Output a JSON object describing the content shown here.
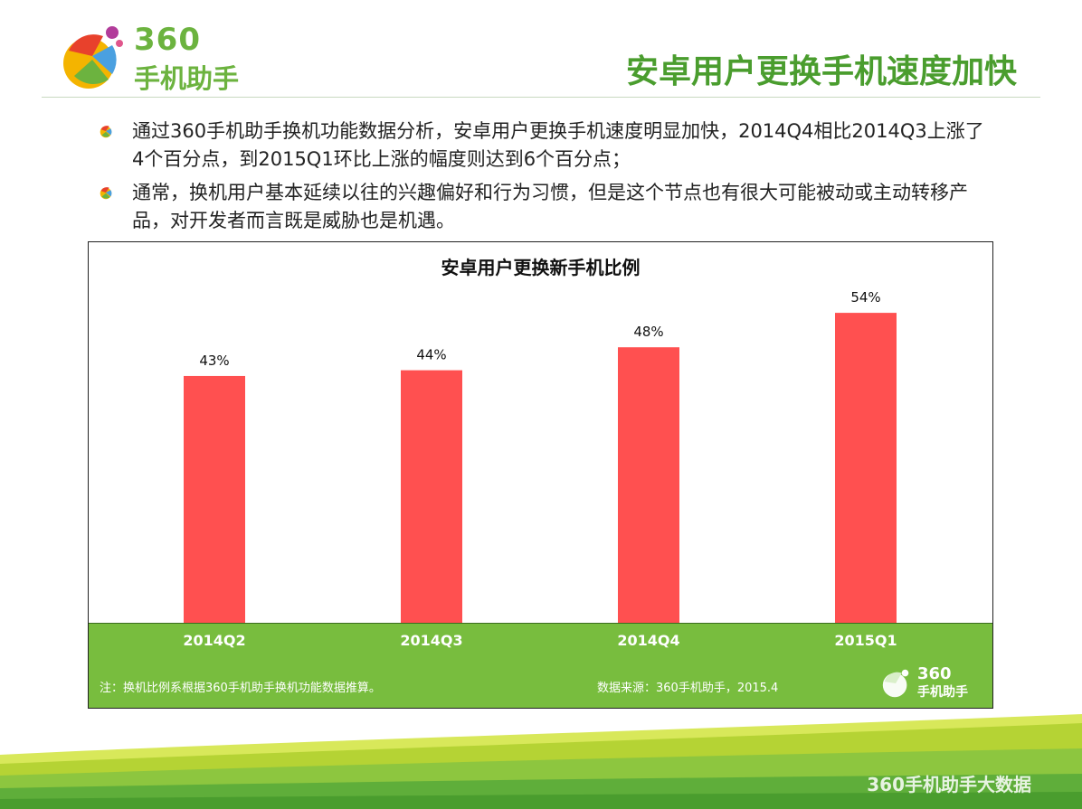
{
  "header": {
    "logo_number": "360",
    "logo_text": "手机助手",
    "title": "安卓用户更换手机速度加快"
  },
  "bullets": [
    "通过360手机助手换机功能数据分析，安卓用户更换手机速度明显加快，2014Q4相比2014Q3上涨了4个百分点，到2015Q1环比上涨的幅度则达到6个百分点；",
    "通常，换机用户基本延续以往的兴趣偏好和行为习惯，但是这个节点也有很大可能被动或主动转移产品，对开发者而言既是威胁也是机遇。"
  ],
  "chart_data": {
    "type": "bar",
    "title": "安卓用户更换新手机比例",
    "categories": [
      "2014Q2",
      "2014Q3",
      "2014Q4",
      "2015Q1"
    ],
    "values": [
      43,
      44,
      48,
      54
    ],
    "value_labels": [
      "43%",
      "44%",
      "48%",
      "54%"
    ],
    "ylim": [
      0,
      60
    ],
    "bar_color": "#ff5050",
    "grid": false
  },
  "chart_notes": {
    "left": "注：换机比例系根据360手机助手换机功能数据推算。",
    "right": "数据来源：360手机助手，2015.4",
    "logo_number": "360",
    "logo_text": "手机助手"
  },
  "footer": {
    "watermark": "360手机助手大数据"
  },
  "colors": {
    "brand_green": "#6cb33f",
    "band_green": "#78bd3e",
    "bar_red": "#ff5050"
  }
}
